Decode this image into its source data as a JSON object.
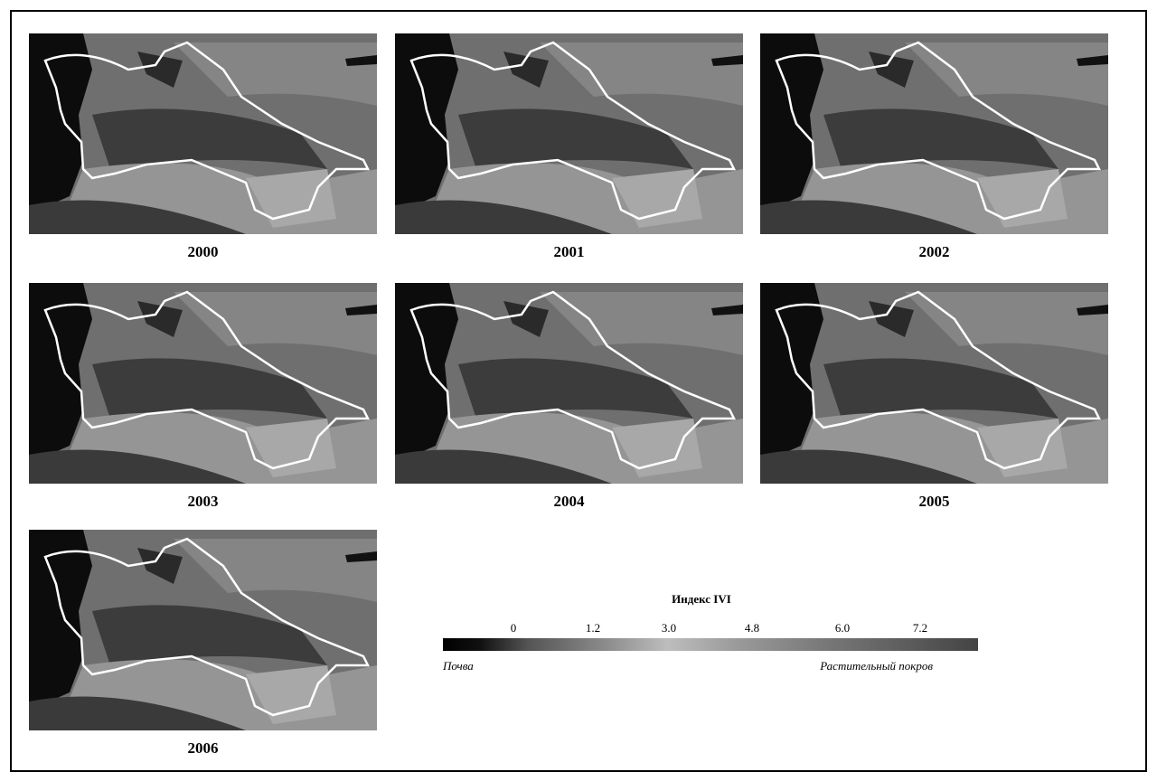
{
  "panels": [
    {
      "year": "2000"
    },
    {
      "year": "2001"
    },
    {
      "year": "2002"
    },
    {
      "year": "2003"
    },
    {
      "year": "2004"
    },
    {
      "year": "2005"
    },
    {
      "year": "2006"
    }
  ],
  "legend": {
    "title": "Индекс IVI",
    "ticks": [
      "0",
      "1.2",
      "3.0",
      "4.8",
      "6.0",
      "7.2"
    ],
    "low_label": "Почва",
    "high_label": "Растительный покров"
  }
}
